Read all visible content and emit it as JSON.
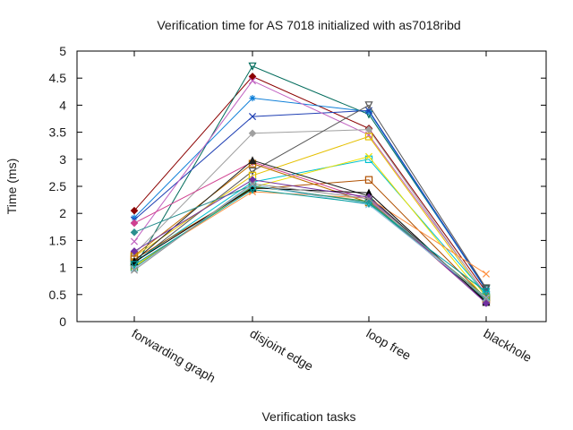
{
  "chart_data": {
    "type": "line",
    "title": "Verification time for AS 7018 initialized with as7018ribd",
    "xlabel": "Verification tasks",
    "ylabel": "Time (ms)",
    "categories": [
      "forwarding graph",
      "disjoint edge",
      "loop free",
      "blackhole"
    ],
    "ylim": [
      0,
      5
    ],
    "yticks": [
      0,
      0.5,
      1,
      1.5,
      2,
      2.5,
      3,
      3.5,
      4,
      4.5,
      5
    ],
    "yticklabels": [
      "0",
      "0.5",
      "1",
      "1.5",
      "2",
      "2.5",
      "3",
      "3.5",
      "4",
      "4.5",
      "5"
    ],
    "grid": false,
    "legend": "none",
    "series": [
      {
        "color": "#8b0000",
        "marker": "diamond",
        "values": [
          2.05,
          4.53,
          3.57,
          0.55
        ]
      },
      {
        "color": "#006b5b",
        "marker": "triangle-down",
        "values": [
          1.0,
          4.72,
          3.83,
          0.6
        ]
      },
      {
        "color": "#0f7fd8",
        "marker": "star",
        "values": [
          1.92,
          4.13,
          3.88,
          0.58
        ]
      },
      {
        "color": "#1f3fb3",
        "marker": "x",
        "values": [
          1.88,
          3.79,
          3.9,
          0.6
        ]
      },
      {
        "color": "#c060c0",
        "marker": "x",
        "values": [
          1.48,
          4.45,
          3.45,
          0.5
        ]
      },
      {
        "color": "#a0a0a0",
        "marker": "diamond",
        "values": [
          1.25,
          3.48,
          3.55,
          0.48
        ]
      },
      {
        "color": "#555555",
        "marker": "triangle-down",
        "values": [
          1.08,
          2.78,
          4.0,
          0.62
        ]
      },
      {
        "color": "#e5c000",
        "marker": "square",
        "values": [
          1.2,
          2.7,
          3.42,
          0.45
        ]
      },
      {
        "color": "#00c0d0",
        "marker": "square",
        "values": [
          1.1,
          2.58,
          3.0,
          0.5
        ]
      },
      {
        "color": "#f0e000",
        "marker": "x",
        "values": [
          1.02,
          2.48,
          3.05,
          0.4
        ]
      },
      {
        "color": "#b05000",
        "marker": "square",
        "values": [
          1.15,
          2.45,
          2.62,
          0.42
        ]
      },
      {
        "color": "#d04090",
        "marker": "diamond",
        "values": [
          1.82,
          2.95,
          2.25,
          0.35
        ]
      },
      {
        "color": "#c07000",
        "marker": "square",
        "values": [
          1.22,
          2.92,
          2.2,
          0.4
        ]
      },
      {
        "color": "#202020",
        "marker": "triangle",
        "values": [
          1.12,
          2.98,
          2.32,
          0.38
        ]
      },
      {
        "color": "#ff9040",
        "marker": "x",
        "values": [
          1.05,
          2.4,
          2.28,
          0.88
        ]
      },
      {
        "color": "#40a040",
        "marker": "square",
        "values": [
          1.0,
          2.5,
          2.22,
          0.45
        ]
      },
      {
        "color": "#2a8f8f",
        "marker": "diamond",
        "values": [
          1.65,
          2.52,
          2.2,
          0.4
        ]
      },
      {
        "color": "#000000",
        "marker": "triangle",
        "values": [
          1.1,
          2.47,
          2.38,
          0.36
        ]
      },
      {
        "color": "#7030a0",
        "marker": "diamond",
        "values": [
          1.3,
          2.62,
          2.3,
          0.34
        ]
      },
      {
        "color": "#90c0e0",
        "marker": "x",
        "values": [
          0.98,
          2.52,
          2.16,
          0.44
        ]
      },
      {
        "color": "#00a0a0",
        "marker": "triangle-down",
        "values": [
          1.05,
          2.44,
          2.18,
          0.55
        ]
      },
      {
        "color": "#909090",
        "marker": "x",
        "values": [
          0.95,
          2.55,
          2.27,
          0.42
        ]
      }
    ]
  }
}
